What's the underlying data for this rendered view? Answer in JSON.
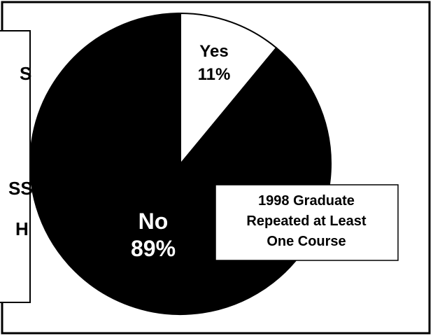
{
  "chart_data": {
    "type": "pie",
    "title": "1998 Graduate Repeated at Least One Course",
    "title_lines": [
      "1998 Graduate",
      "Repeated at Least",
      "One Course"
    ],
    "slices": [
      {
        "label": "Yes",
        "value": 11,
        "value_label": "11%",
        "color": "#ffffff"
      },
      {
        "label": "No",
        "value": 89,
        "value_label": "89%",
        "color": "#000000"
      }
    ],
    "start_angle_deg": 0,
    "direction": "clockwise",
    "legend": "none"
  },
  "side_panel": {
    "text_fragments": [
      "S",
      "SS",
      "H"
    ]
  },
  "colors": {
    "background": "#ffffff",
    "border": "#000000",
    "yes_slice": "#ffffff",
    "no_slice": "#000000",
    "yes_text": "#000000",
    "no_text": "#ffffff"
  }
}
